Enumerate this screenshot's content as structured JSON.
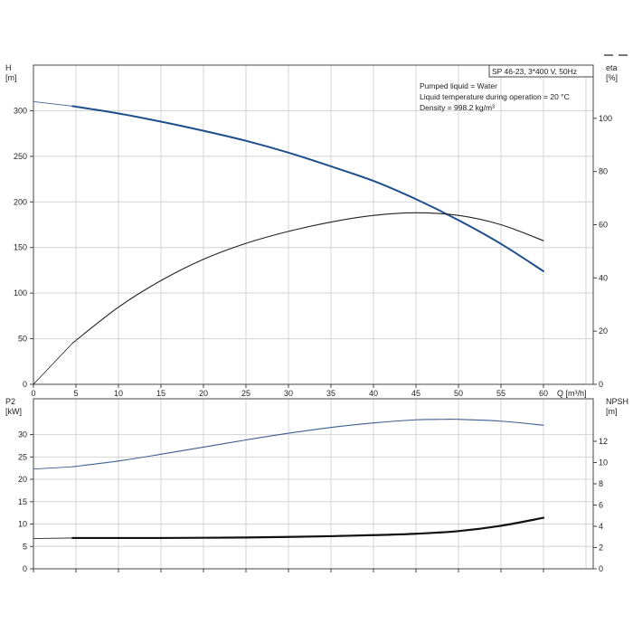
{
  "chart_data": [
    {
      "type": "line",
      "name": "pump performance",
      "header": "SP 46-23, 3*400 V, 50Hz",
      "info_lines": [
        "Pumped liquid = Water",
        "Liquid temperature during operation = 20 °C",
        "Density = 998.2 kg/m³"
      ],
      "xlabel": "Q [m³/h]",
      "ylabel_left": [
        "H",
        "[m]"
      ],
      "ylabel_right": [
        "eta",
        "[%]"
      ],
      "xlim": [
        0,
        60
      ],
      "xticks": [
        0,
        5,
        10,
        15,
        20,
        25,
        30,
        35,
        40,
        45,
        50,
        55,
        60
      ],
      "ylim_left": [
        0,
        350
      ],
      "yticks_left": [
        0,
        50,
        100,
        150,
        200,
        250,
        300
      ],
      "ylim_right": [
        0,
        120
      ],
      "yticks_right": [
        0,
        20,
        40,
        60,
        80,
        100
      ],
      "grid": true,
      "series": [
        {
          "axis": "left",
          "color": "#1f4e8c",
          "x": [
            0,
            4.6,
            10,
            15,
            20,
            25,
            30,
            35,
            40,
            45,
            50,
            55,
            60
          ],
          "values": [
            310,
            305,
            297,
            288,
            278,
            267,
            254,
            239,
            223,
            203,
            180,
            154,
            124
          ]
        },
        {
          "axis": "right",
          "color": "#222222",
          "x": [
            0,
            4.6,
            10,
            15,
            20,
            25,
            30,
            35,
            40,
            45,
            50,
            55,
            60
          ],
          "values": [
            0,
            15.5,
            29,
            39,
            47,
            53,
            57.5,
            61,
            63.5,
            64.5,
            63.5,
            60,
            54
          ]
        }
      ]
    },
    {
      "type": "line",
      "name": "power and NPSH",
      "ylabel_left": [
        "P2",
        "[kW]"
      ],
      "ylabel_right": [
        "NPSH",
        "[m]"
      ],
      "xlim": [
        0,
        60
      ],
      "ylim_left": [
        0,
        38
      ],
      "yticks_left": [
        0,
        5,
        10,
        15,
        20,
        25,
        30
      ],
      "ylim_right": [
        0,
        16
      ],
      "yticks_right": [
        0,
        2,
        4,
        6,
        8,
        10,
        12
      ],
      "grid": true,
      "series": [
        {
          "axis": "left",
          "color": "#3a5f8f",
          "x": [
            0,
            4.6,
            10,
            15,
            20,
            25,
            30,
            35,
            40,
            45,
            48,
            50,
            55,
            60
          ],
          "values": [
            22.3,
            22.8,
            24.1,
            25.6,
            27.2,
            28.8,
            30.3,
            31.6,
            32.6,
            33.3,
            33.4,
            33.4,
            33.0,
            32.1
          ]
        },
        {
          "axis": "right",
          "color": "#111111",
          "x": [
            0,
            4.6,
            10,
            15,
            20,
            25,
            30,
            35,
            40,
            45,
            50,
            55,
            60
          ],
          "values": [
            2.85,
            2.9,
            2.9,
            2.9,
            2.92,
            2.95,
            3.0,
            3.07,
            3.17,
            3.3,
            3.55,
            4.05,
            4.8
          ]
        }
      ]
    }
  ]
}
